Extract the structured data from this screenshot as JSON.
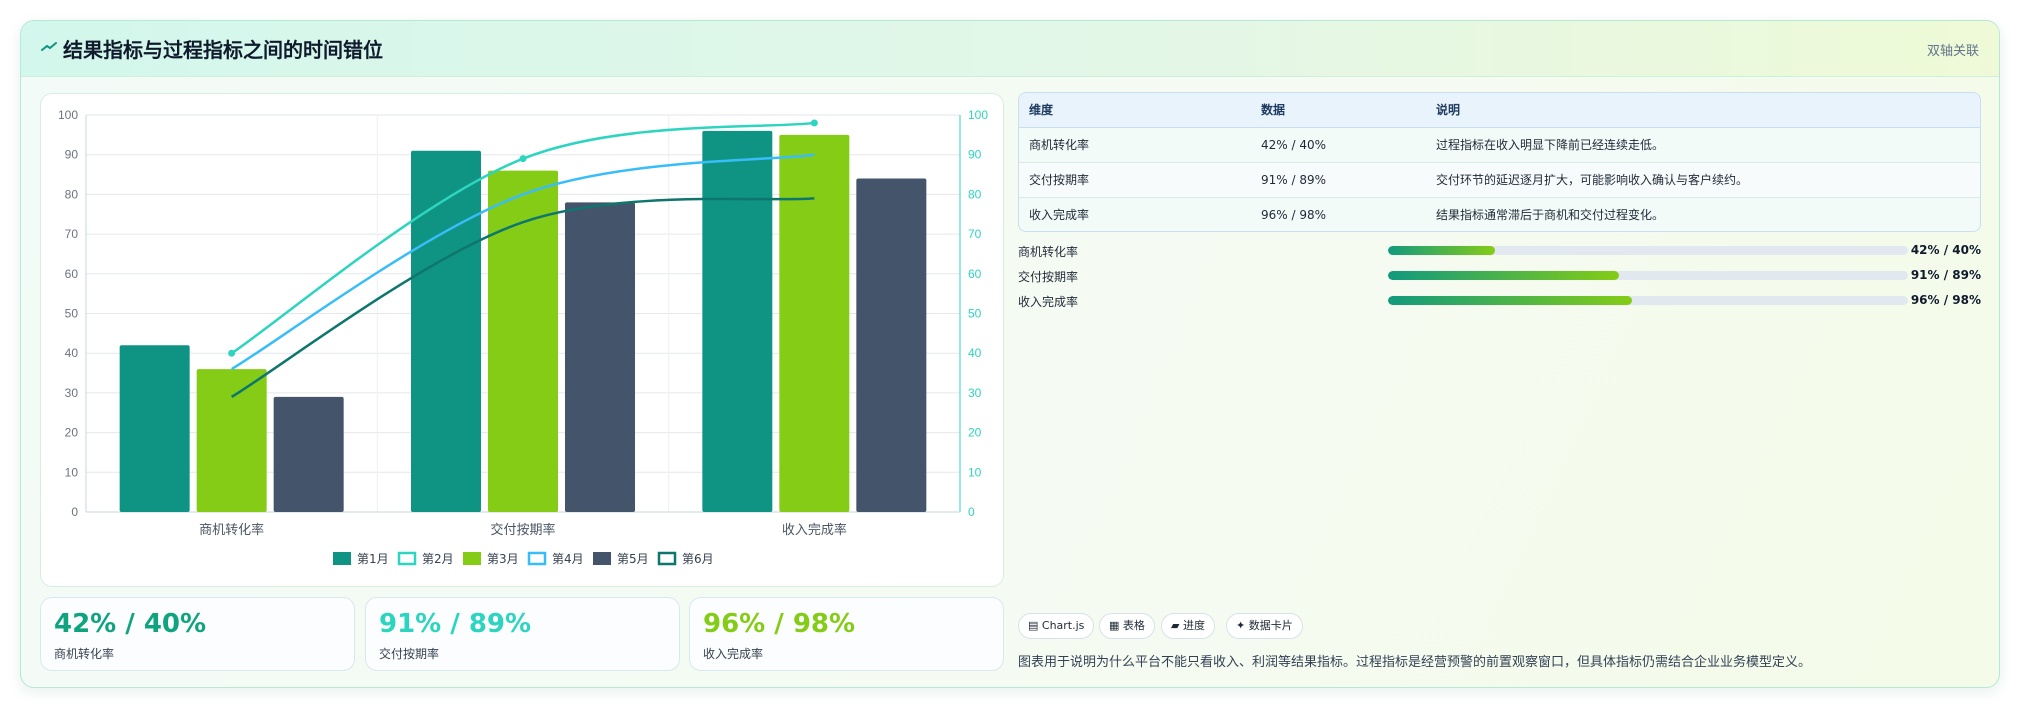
{
  "header": {
    "title": "结果指标与过程指标之间的时间错位",
    "link": "双轴关联"
  },
  "colors": {
    "teal": "#0f9484",
    "lime": "#84cc16",
    "slate": "#44546a",
    "line1": "#2dd4bf",
    "line2": "#38bdf8",
    "line3": "#0f766e"
  },
  "chart_data": {
    "type": "bar",
    "categories": [
      "商机转化率",
      "交付按期率",
      "收入完成率"
    ],
    "series": [
      {
        "name": "第1月",
        "kind": "bar",
        "color": "#0f9484",
        "values": [
          42,
          91,
          96
        ]
      },
      {
        "name": "第2月",
        "kind": "line",
        "color": "#2dd4bf",
        "values": [
          40,
          89,
          98
        ]
      },
      {
        "name": "第3月",
        "kind": "bar",
        "color": "#84cc16",
        "values": [
          36,
          86,
          95
        ]
      },
      {
        "name": "第4月",
        "kind": "line",
        "color": "#38bdf8",
        "values": [
          36,
          80,
          90
        ]
      },
      {
        "name": "第5月",
        "kind": "bar",
        "color": "#44546a",
        "values": [
          29,
          78,
          84
        ]
      },
      {
        "name": "第6月",
        "kind": "line",
        "color": "#0f766e",
        "values": [
          29,
          73,
          79
        ]
      }
    ],
    "ylim": [
      0,
      100
    ],
    "y2lim": [
      0,
      100
    ],
    "yticks": [
      "0",
      "10",
      "20",
      "30",
      "40",
      "50",
      "60",
      "70",
      "80",
      "90",
      "100"
    ],
    "legend": "bottom",
    "grid": true
  },
  "table": {
    "headers": [
      "维度",
      "数据",
      "说明"
    ],
    "rows": [
      [
        "商机转化率",
        "42% / 40%",
        "过程指标在收入明显下降前已经连续走低。"
      ],
      [
        "交付按期率",
        "91% / 89%",
        "交付环节的延迟逐月扩大，可能影响收入确认与客户续约。"
      ],
      [
        "收入完成率",
        "96% / 98%",
        "结果指标通常滞后于商机和交付过程变化。"
      ]
    ]
  },
  "progress": [
    {
      "label": "商机转化率",
      "value": "42% / 40%",
      "fraction": 0.205
    },
    {
      "label": "交付按期率",
      "value": "91% / 89%",
      "fraction": 0.445
    },
    {
      "label": "收入完成率",
      "value": "96% / 98%",
      "fraction": 0.47
    }
  ],
  "kpis": [
    {
      "value": "42% / 40%",
      "label": "商机转化率",
      "color": "#10a37f"
    },
    {
      "value": "91% / 89%",
      "label": "交付按期率",
      "color": "#2dd4bf"
    },
    {
      "value": "96% / 98%",
      "label": "收入完成率",
      "color": "#84cc16"
    }
  ],
  "tags": [
    "▤ Chart.js",
    "▦ 表格",
    "▰ 进度",
    "✦ 数据卡片"
  ],
  "note": "图表用于说明为什么平台不能只看收入、利润等结果指标。过程指标是经营预警的前置观察窗口，但具体指标仍需结合企业业务模型定义。"
}
